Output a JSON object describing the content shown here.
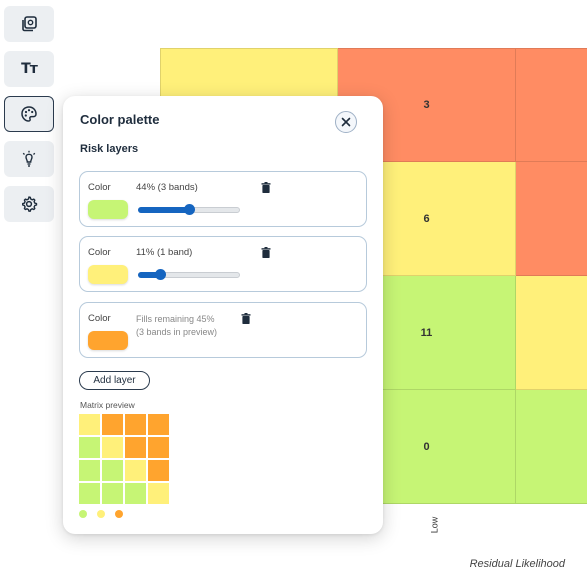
{
  "toolbar": {
    "items": [
      {
        "name": "layers-icon",
        "label": ""
      },
      {
        "name": "text-tool",
        "label": "Tт"
      },
      {
        "name": "palette-icon",
        "label": "",
        "active": true
      },
      {
        "name": "bulb-icon",
        "label": ""
      },
      {
        "name": "gear-icon",
        "label": ""
      }
    ]
  },
  "matrix": {
    "colors": {
      "red": "#ff8c63",
      "yellow": "#fff07a",
      "green": "#c6f575"
    },
    "rows": [
      {
        "cells": [
          {
            "color": "yellow",
            "label": ""
          },
          {
            "color": "red",
            "label": "3"
          },
          {
            "color": "red",
            "label": ""
          }
        ]
      },
      {
        "cells": [
          {
            "color": "yellow",
            "label": ""
          },
          {
            "color": "yellow",
            "label": "6"
          },
          {
            "color": "red",
            "label": ""
          }
        ]
      },
      {
        "cells": [
          {
            "color": "green",
            "label": ""
          },
          {
            "color": "green",
            "label": "11"
          },
          {
            "color": "yellow",
            "label": ""
          }
        ]
      },
      {
        "cells": [
          {
            "color": "green",
            "label": ""
          },
          {
            "color": "green",
            "label": "0"
          },
          {
            "color": "green",
            "label": ""
          }
        ]
      }
    ],
    "x_tick_low": "Low",
    "x_axis_title": "Residual Likelihood"
  },
  "palette": {
    "title": "Color palette",
    "section": "Risk layers",
    "color_label": "Color",
    "layers": [
      {
        "swatch": "#c6f575",
        "info": "44% (3 bands)",
        "slider_value": 0.5
      },
      {
        "swatch": "#fff07a",
        "info": "11% (1 band)",
        "slider_value": 0.22
      },
      {
        "swatch": "#ffa42e",
        "info_line1": "Fills remaining 45%",
        "info_line2": "(3 bands in preview)"
      }
    ],
    "add_button": "Add layer",
    "preview_label": "Matrix preview",
    "preview_colors": {
      "g": "#c6f575",
      "y": "#fff07a",
      "o": "#ffa42e"
    },
    "preview_grid": [
      [
        "y",
        "o",
        "o",
        "o"
      ],
      [
        "g",
        "y",
        "o",
        "o"
      ],
      [
        "g",
        "g",
        "y",
        "o"
      ],
      [
        "g",
        "g",
        "g",
        "y"
      ]
    ],
    "legend_dots": [
      "#c6f575",
      "#fff07a",
      "#ffa42e"
    ]
  }
}
